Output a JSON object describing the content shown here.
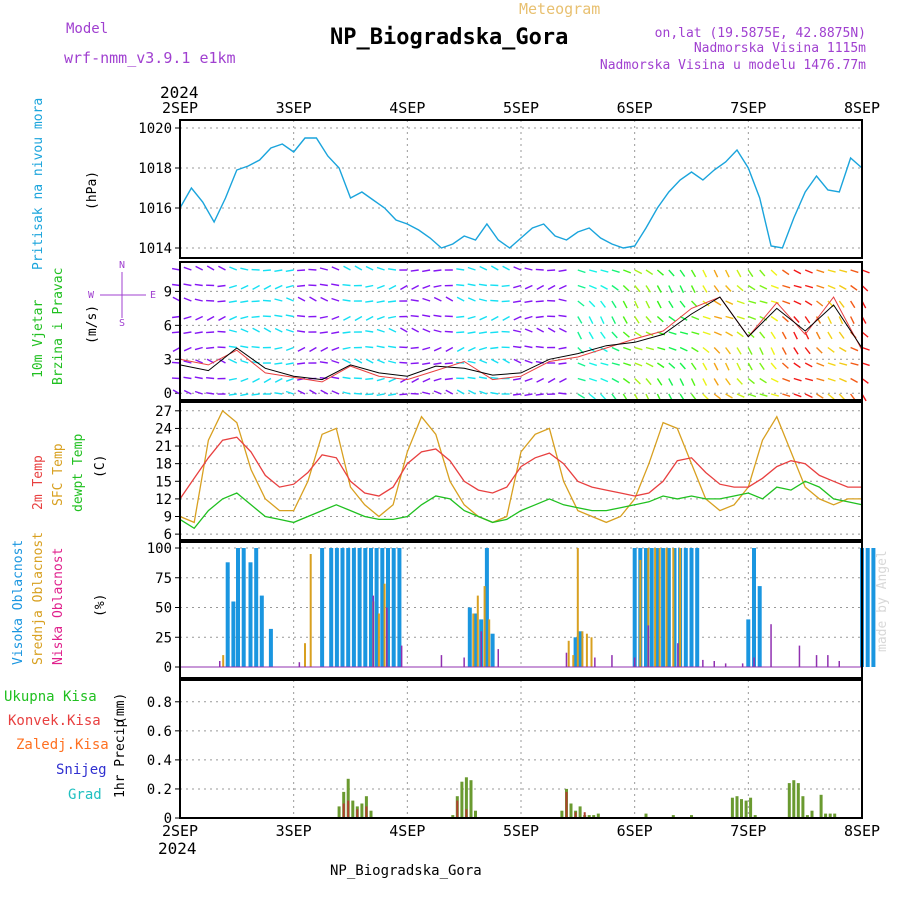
{
  "header": {
    "model_label": "Model",
    "model_name": "wrf-nmm_v3.9.1  e1km",
    "meteogram_label": "Meteogram",
    "station_title": "NP_Biogradska_Gora",
    "lonlat": "on,lat (19.5875E, 42.8875N)",
    "altitude": "Nadmorska Visina 1115m",
    "model_altitude": "Nadmorska Visina u modelu 1476.77m",
    "footer_station": "NP_Biogradska_Gora",
    "credit": "made by Angel"
  },
  "colors": {
    "pressure": "#1aa4dc",
    "temp2m": "#e84040",
    "sfc_temp": "#d8a020",
    "dewpt": "#20c020",
    "high_cloud": "#1a96e0",
    "mid_cloud": "#d8a020",
    "low_cloud": "#9030b0",
    "total_rain": "#20c020",
    "conv_rain": "#e84040",
    "frozen_rain": "#ff7020",
    "snow": "#3030d0",
    "graupel": "#20c0c0",
    "header_purple": "#a040d0",
    "header_gold": "#e8c070"
  },
  "chart_data": {
    "time_axis": {
      "year": "2024",
      "labels": [
        "2SEP",
        "3SEP",
        "4SEP",
        "5SEP",
        "6SEP",
        "7SEP",
        "8SEP"
      ]
    },
    "pressure": {
      "type": "line",
      "ylabel": "Pritisak na nivou mora",
      "unit": "(hPa)",
      "yticks": [
        1014,
        1016,
        1018,
        1020
      ],
      "ylim": [
        1013.5,
        1020.4
      ],
      "x": [
        0,
        0.1,
        0.2,
        0.3,
        0.4,
        0.5,
        0.6,
        0.7,
        0.8,
        0.9,
        1.0,
        1.1,
        1.2,
        1.3,
        1.4,
        1.5,
        1.6,
        1.7,
        1.8,
        1.9,
        2.0,
        2.1,
        2.2,
        2.3,
        2.4,
        2.5,
        2.6,
        2.7,
        2.8,
        2.9,
        3.0,
        3.1,
        3.2,
        3.3,
        3.4,
        3.5,
        3.6,
        3.7,
        3.8,
        3.9,
        4.0,
        4.1,
        4.2,
        4.3,
        4.4,
        4.5,
        4.6,
        4.7,
        4.8,
        4.9,
        5.0,
        5.1,
        5.2,
        5.3,
        5.4,
        5.5,
        5.6,
        5.7,
        5.8,
        5.9,
        6.0
      ],
      "values": [
        1016.0,
        1017.0,
        1016.3,
        1015.3,
        1016.5,
        1017.9,
        1018.1,
        1018.4,
        1019.0,
        1019.2,
        1018.8,
        1019.5,
        1019.5,
        1018.6,
        1018.0,
        1016.5,
        1016.8,
        1016.4,
        1016.0,
        1015.4,
        1015.2,
        1014.9,
        1014.5,
        1014.0,
        1014.2,
        1014.6,
        1014.4,
        1015.2,
        1014.4,
        1014.0,
        1014.5,
        1015.0,
        1015.2,
        1014.6,
        1014.4,
        1014.8,
        1015.0,
        1014.5,
        1014.2,
        1014.0,
        1014.1,
        1015.0,
        1016.0,
        1016.8,
        1017.4,
        1017.8,
        1017.4,
        1017.9,
        1018.3,
        1018.9,
        1018.0,
        1016.5,
        1014.1,
        1014.0,
        1015.5,
        1016.8,
        1017.6,
        1016.9,
        1016.8,
        1018.5,
        1018.0
      ]
    },
    "wind": {
      "type": "line",
      "ylabel": "10m Vjetar Brzina i Pravac",
      "unit": "(m/s)",
      "yticks": [
        0,
        3,
        6,
        9
      ],
      "ylim": [
        -0.6,
        11.6
      ],
      "compass": [
        "N",
        "W",
        "E",
        "S"
      ],
      "x": [
        0,
        0.25,
        0.5,
        0.75,
        1.0,
        1.25,
        1.5,
        1.75,
        2.0,
        2.25,
        2.5,
        2.75,
        3.0,
        3.25,
        3.5,
        3.75,
        4.0,
        4.25,
        4.5,
        4.75,
        5.0,
        5.25,
        5.5,
        5.75,
        6.0
      ],
      "values": [
        2.5,
        2.0,
        4.0,
        2.2,
        1.5,
        1.2,
        2.5,
        1.8,
        1.5,
        2.4,
        2.2,
        1.6,
        1.8,
        3.0,
        3.5,
        4.2,
        4.5,
        5.2,
        7.0,
        8.5,
        5.0,
        7.5,
        5.5,
        7.8,
        4.0
      ],
      "gust_values": [
        3.0,
        2.5,
        3.8,
        1.8,
        1.4,
        1.0,
        2.4,
        1.5,
        1.2,
        2.0,
        2.8,
        1.2,
        1.5,
        2.8,
        3.2,
        4.0,
        4.8,
        5.5,
        7.5,
        8.5,
        5.0,
        8.0,
        5.2,
        8.5,
        3.8
      ]
    },
    "temperature": {
      "type": "line",
      "ylabel": [
        "2m Temp",
        "SFC Temp",
        "dewpt Temp"
      ],
      "unit": "(C)",
      "yticks": [
        6,
        9,
        12,
        15,
        18,
        21,
        24,
        27
      ],
      "ylim": [
        5.0,
        28.5
      ],
      "x": [
        0,
        0.125,
        0.25,
        0.375,
        0.5,
        0.625,
        0.75,
        0.875,
        1.0,
        1.125,
        1.25,
        1.375,
        1.5,
        1.625,
        1.75,
        1.875,
        2.0,
        2.125,
        2.25,
        2.375,
        2.5,
        2.625,
        2.75,
        2.875,
        3.0,
        3.125,
        3.25,
        3.375,
        3.5,
        3.625,
        3.75,
        3.875,
        4.0,
        4.125,
        4.25,
        4.375,
        4.5,
        4.625,
        4.75,
        4.875,
        5.0,
        5.125,
        5.25,
        5.375,
        5.5,
        5.625,
        5.75,
        5.875,
        6.0
      ],
      "t2m": [
        12,
        15.5,
        19,
        22,
        22.5,
        20,
        16,
        14,
        14.5,
        16.5,
        19.5,
        19,
        15,
        13,
        12.5,
        14,
        18,
        20,
        20.5,
        18.5,
        15,
        13.5,
        13,
        14,
        17.5,
        19,
        19.8,
        18,
        15,
        14,
        13.5,
        13,
        12.5,
        13,
        15,
        18.5,
        19,
        16.5,
        14.5,
        14,
        14,
        15.5,
        17.5,
        18.5,
        18,
        16,
        15,
        14,
        14
      ],
      "sfc": [
        9,
        8,
        22,
        27,
        25,
        17,
        12,
        10,
        10,
        15,
        23,
        24,
        14,
        11,
        9,
        11,
        20,
        26,
        23,
        15,
        11,
        9,
        8,
        9,
        20,
        23,
        24,
        15,
        10,
        9,
        8,
        9,
        12,
        18,
        25,
        24,
        18,
        12,
        10,
        11,
        14,
        22,
        26,
        20,
        14,
        12,
        11,
        12,
        12
      ],
      "dewpt": [
        8.5,
        7,
        10,
        12,
        13,
        11,
        9,
        8.5,
        8,
        9,
        10,
        11,
        10,
        9,
        8.5,
        8.5,
        9,
        11,
        12.5,
        12,
        10,
        9,
        8,
        8.5,
        10,
        11,
        12,
        11,
        10.5,
        10,
        10,
        10.5,
        11,
        11.5,
        12.5,
        12,
        12.5,
        12,
        12,
        12.5,
        13,
        12,
        14,
        13.5,
        15,
        14,
        12,
        11.5,
        11
      ]
    },
    "clouds": {
      "type": "bar",
      "ylabel": [
        "Visoka Oblacnost",
        "Srednja Oblacnost",
        "Niska Oblacnost"
      ],
      "unit": "(%)",
      "yticks": [
        0,
        25,
        50,
        75,
        100
      ],
      "ylim": [
        0,
        100
      ],
      "high": {
        "x": [
          0.42,
          0.47,
          0.51,
          0.56,
          0.62,
          0.67,
          0.72,
          0.8,
          1.25,
          1.33,
          1.38,
          1.43,
          1.48,
          1.53,
          1.58,
          1.63,
          1.68,
          1.73,
          1.78,
          1.83,
          1.88,
          1.93,
          2.55,
          2.6,
          2.65,
          2.7,
          2.75,
          3.48,
          3.52,
          4.0,
          4.05,
          4.1,
          4.15,
          4.2,
          4.25,
          4.3,
          4.35,
          4.4,
          4.45,
          4.5,
          4.55,
          5.0,
          5.05,
          5.1,
          6.0,
          6.05,
          6.1
        ],
        "values": [
          88,
          55,
          100,
          100,
          88,
          100,
          60,
          32,
          100,
          100,
          100,
          100,
          100,
          100,
          100,
          100,
          100,
          100,
          100,
          100,
          100,
          100,
          50,
          45,
          40,
          100,
          28,
          25,
          30,
          100,
          100,
          100,
          100,
          100,
          100,
          100,
          100,
          100,
          100,
          100,
          100,
          40,
          100,
          68,
          100,
          100,
          100
        ]
      },
      "mid": {
        "x": [
          0.38,
          1.1,
          1.15,
          1.7,
          1.75,
          1.8,
          2.58,
          2.62,
          2.68,
          2.72,
          3.42,
          3.46,
          3.5,
          3.54,
          3.58,
          3.62,
          4.05,
          4.12,
          4.18,
          4.22,
          4.28,
          4.34,
          4.4
        ],
        "values": [
          10,
          20,
          95,
          55,
          45,
          70,
          45,
          60,
          68,
          40,
          22,
          10,
          100,
          30,
          28,
          25,
          90,
          100,
          100,
          100,
          100,
          100,
          100
        ]
      },
      "low": {
        "x": [
          0.35,
          1.05,
          1.7,
          1.82,
          1.95,
          2.3,
          2.5,
          2.65,
          2.8,
          3.4,
          3.65,
          3.8,
          4.0,
          4.12,
          4.38,
          4.6,
          4.7,
          4.8,
          4.95,
          5.05,
          5.2,
          5.45,
          5.6,
          5.7,
          5.8
        ],
        "values": [
          5,
          4,
          60,
          50,
          18,
          10,
          8,
          30,
          15,
          12,
          8,
          10,
          8,
          35,
          20,
          6,
          5,
          3,
          3,
          8,
          36,
          18,
          10,
          10,
          5
        ]
      }
    },
    "precip": {
      "type": "bar",
      "ylabel": "1hr Precip",
      "unit": "(mm)",
      "legend": [
        "Ukupna Kisa",
        "Konvek.Kisa",
        "Zaledj.Kisa",
        "Snijeg",
        "Grad"
      ],
      "yticks": [
        0,
        0.2,
        0.4,
        0.6,
        0.8
      ],
      "ylim": [
        0,
        0.95
      ],
      "total": {
        "x": [
          1.4,
          1.44,
          1.48,
          1.52,
          1.56,
          1.6,
          1.64,
          1.68,
          2.4,
          2.44,
          2.48,
          2.52,
          2.56,
          2.6,
          3.36,
          3.4,
          3.44,
          3.48,
          3.52,
          3.56,
          3.6,
          3.64,
          3.68,
          4.1,
          4.34,
          4.5,
          4.86,
          4.9,
          4.94,
          4.98,
          5.02,
          5.06,
          5.36,
          5.4,
          5.44,
          5.48,
          5.52,
          5.56,
          5.64,
          5.68,
          5.72,
          5.76
        ],
        "values": [
          0.08,
          0.18,
          0.27,
          0.12,
          0.08,
          0.1,
          0.15,
          0.05,
          0.02,
          0.15,
          0.25,
          0.28,
          0.26,
          0.05,
          0.05,
          0.2,
          0.1,
          0.05,
          0.08,
          0.02,
          0.02,
          0.02,
          0.03,
          0.03,
          0.02,
          0.02,
          0.14,
          0.15,
          0.13,
          0.12,
          0.14,
          0.02,
          0.24,
          0.26,
          0.24,
          0.15,
          0.02,
          0.05,
          0.16,
          0.03,
          0.03,
          0.03
        ]
      },
      "conv": {
        "x": [
          1.44,
          1.48,
          1.56,
          1.64,
          2.44,
          2.52,
          3.4,
          3.48,
          3.56
        ],
        "values": [
          0.1,
          0.12,
          0.06,
          0.08,
          0.12,
          0.06,
          0.18,
          0.04,
          0.04
        ]
      }
    }
  }
}
